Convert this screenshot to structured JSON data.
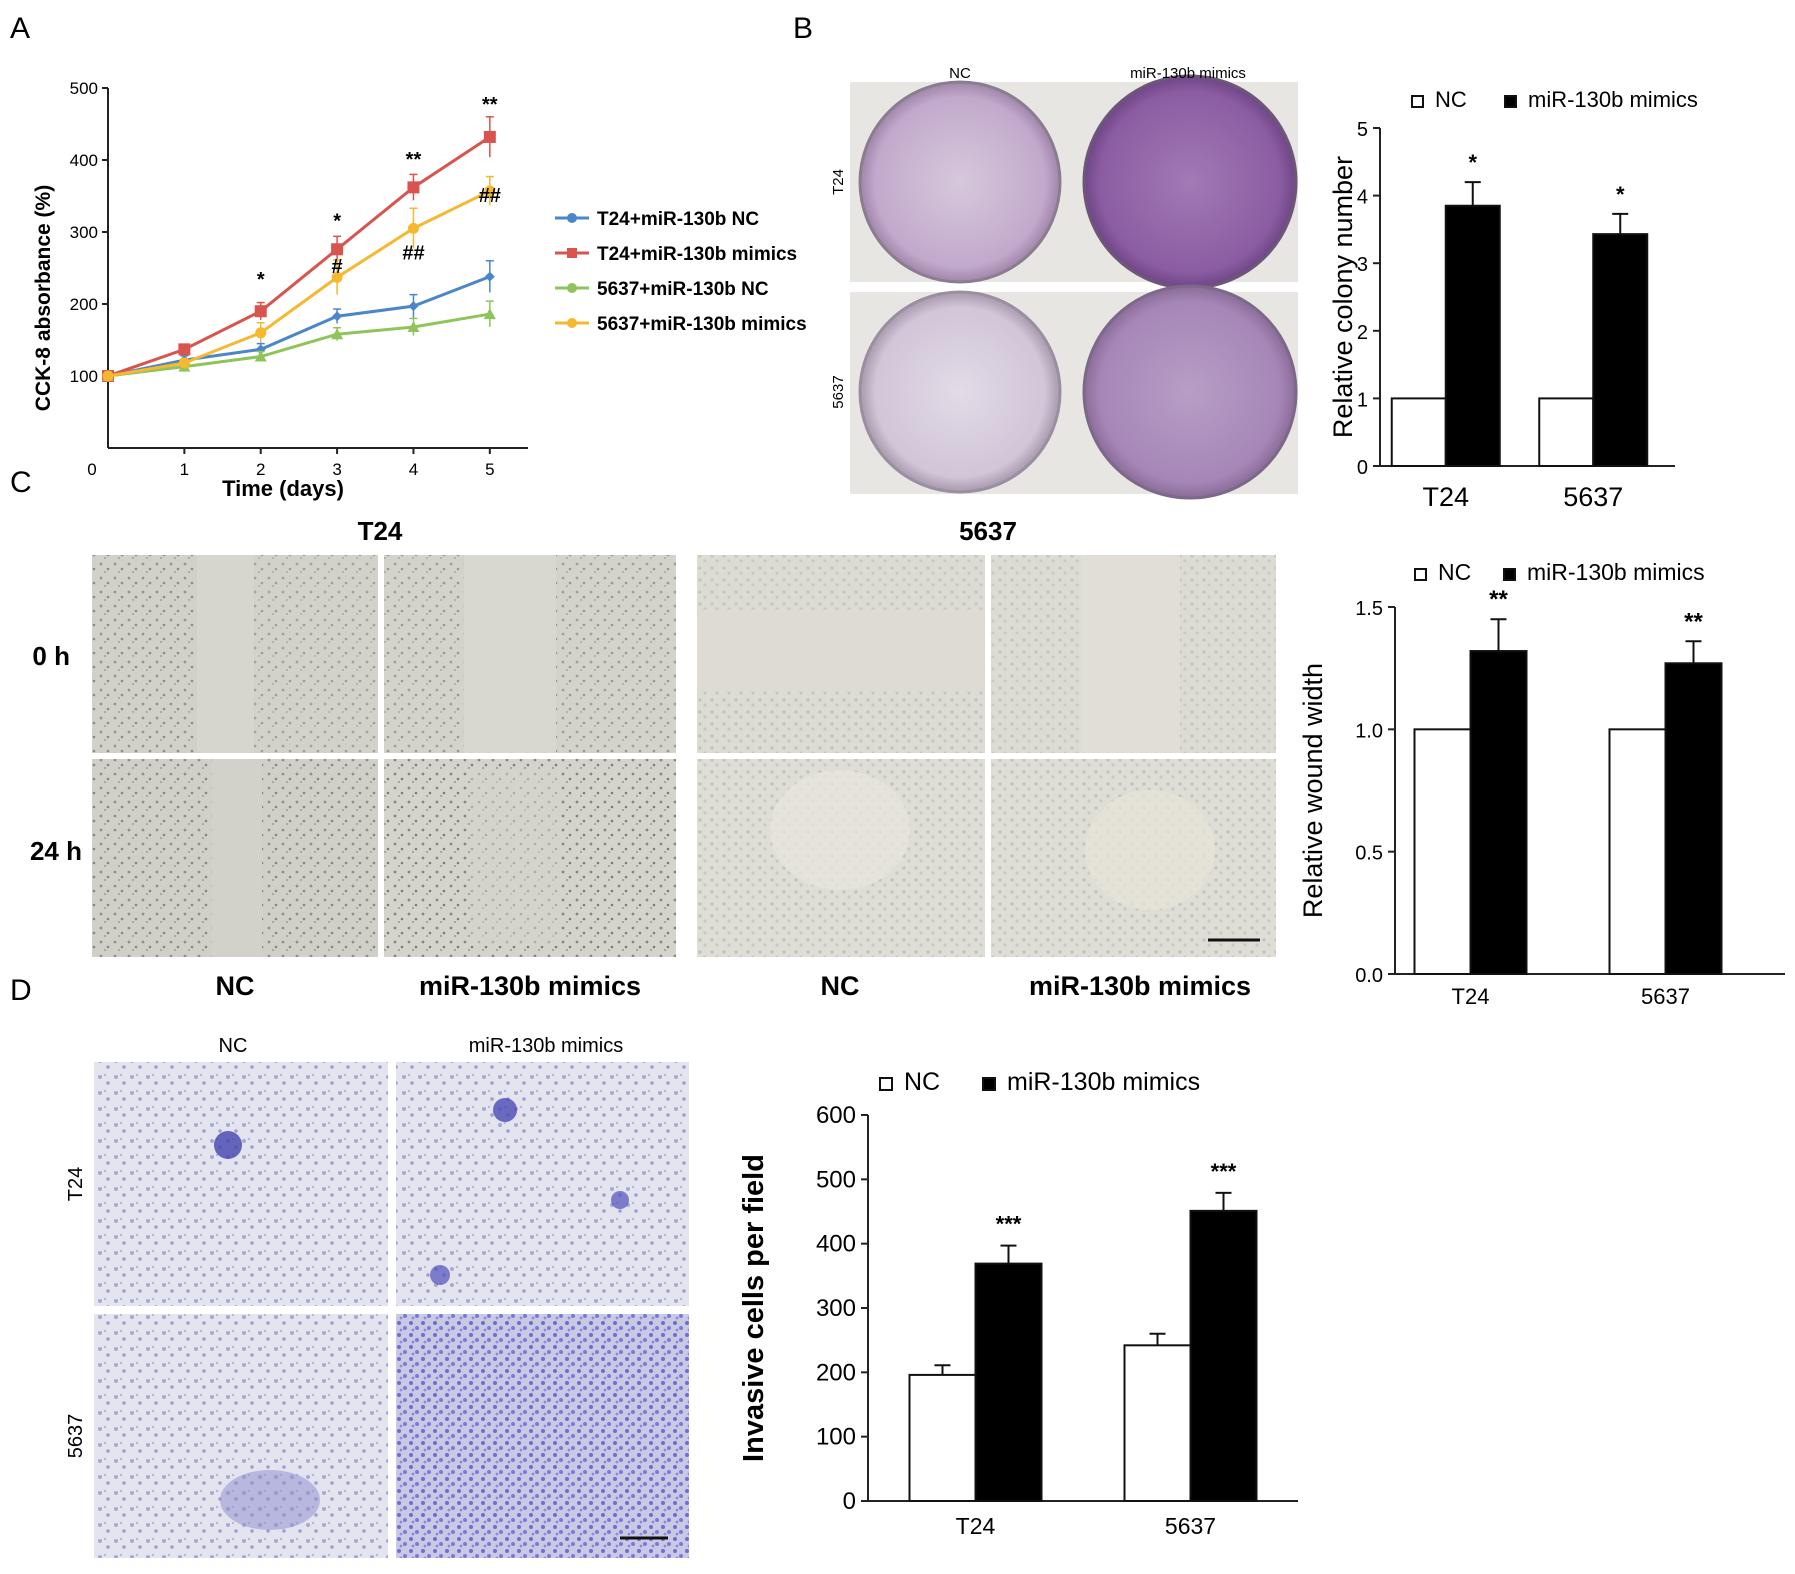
{
  "panels": {
    "a": {
      "letter": "A",
      "chart_data": {
        "type": "line",
        "xlabel": "Time (days)",
        "ylabel": "CCK-8 absorbance (%)",
        "x": [
          0,
          1,
          2,
          3,
          4,
          5
        ],
        "x_ticks": [
          "0",
          "1",
          "2",
          "3",
          "4",
          "5"
        ],
        "y_ticks": [
          "100",
          "200",
          "300",
          "400",
          "500"
        ],
        "ylim": [
          0,
          500
        ],
        "xlim": [
          0,
          5.5
        ],
        "legend_position": "right",
        "series": [
          {
            "name": "T24+miR-130b NC",
            "values": [
              100,
              122,
              137,
              183,
              197,
              238
            ],
            "errors": [
              5,
              6,
              8,
              10,
              16,
              22
            ],
            "color": "#4a86c8",
            "marker": "diamond"
          },
          {
            "name": "T24+miR-130b mimics",
            "values": [
              100,
              137,
              190,
              276,
              362,
              432
            ],
            "errors": [
              5,
              7,
              12,
              18,
              18,
              28
            ],
            "color": "#d9534f",
            "marker": "square"
          },
          {
            "name": "5637+miR-130b NC",
            "values": [
              100,
              113,
              127,
              158,
              168,
              186
            ],
            "errors": [
              5,
              5,
              7,
              9,
              12,
              18
            ],
            "color": "#8fc45a",
            "marker": "triangle"
          },
          {
            "name": "5637+miR-130b mimics",
            "values": [
              100,
              118,
              160,
              237,
              305,
              357
            ],
            "errors": [
              5,
              6,
              14,
              24,
              28,
              20
            ],
            "color": "#f5b82e",
            "marker": "circle"
          }
        ],
        "annotations": [
          {
            "x": 2,
            "y": 225,
            "text": "*"
          },
          {
            "x": 3,
            "y": 306,
            "text": "*"
          },
          {
            "x": 3,
            "y": 243,
            "text": "#"
          },
          {
            "x": 4,
            "y": 392,
            "text": "**"
          },
          {
            "x": 4,
            "y": 262,
            "text": "##"
          },
          {
            "x": 5,
            "y": 468,
            "text": "**"
          },
          {
            "x": 5,
            "y": 342,
            "text": "##"
          }
        ]
      }
    },
    "b": {
      "letter": "B",
      "photo": {
        "col_labels": [
          "NC",
          "miR-130b mimics"
        ],
        "row_labels": [
          "T24",
          "5637"
        ]
      },
      "chart_data": {
        "type": "bar",
        "ylabel": "Relative colony number",
        "categories": [
          "T24",
          "5637"
        ],
        "y_ticks": [
          "0",
          "1",
          "2",
          "3",
          "4",
          "5"
        ],
        "ylim": [
          0,
          5
        ],
        "legend_position": "top",
        "series": [
          {
            "name": "NC",
            "values": [
              1,
              1
            ],
            "errors": [
              0,
              0
            ],
            "color": "#ffffff"
          },
          {
            "name": "miR-130b mimics",
            "values": [
              3.85,
              3.43
            ],
            "errors": [
              0.35,
              0.3
            ],
            "color": "#000000"
          }
        ],
        "annotations": [
          {
            "category": "T24",
            "text": "*"
          },
          {
            "category": "5637",
            "text": "*"
          }
        ]
      }
    },
    "c": {
      "letter": "C",
      "photo_left": {
        "title": "T24",
        "col_labels": [
          "NC",
          "miR-130b mimics"
        ],
        "row_labels": [
          "0 h",
          "24 h"
        ]
      },
      "photo_right": {
        "title": "5637",
        "col_labels": [
          "NC",
          "miR-130b mimics"
        ]
      },
      "chart_data": {
        "type": "bar",
        "ylabel": "Relative wound width",
        "categories": [
          "T24",
          "5637"
        ],
        "y_ticks": [
          "0.0",
          "0.5",
          "1.0",
          "1.5"
        ],
        "ylim": [
          0,
          1.5
        ],
        "legend_position": "top",
        "series": [
          {
            "name": "NC",
            "values": [
              1.0,
              1.0
            ],
            "errors": [
              0,
              0
            ],
            "color": "#ffffff"
          },
          {
            "name": "miR-130b mimics",
            "values": [
              1.32,
              1.27
            ],
            "errors": [
              0.13,
              0.09
            ],
            "color": "#000000"
          }
        ],
        "annotations": [
          {
            "category": "T24",
            "text": "**"
          },
          {
            "category": "5637",
            "text": "**"
          }
        ]
      }
    },
    "d": {
      "letter": "D",
      "photo": {
        "col_labels": [
          "NC",
          "miR-130b mimics"
        ],
        "row_labels": [
          "T24",
          "5637"
        ]
      },
      "chart_data": {
        "type": "bar",
        "ylabel": "Invasive cells per field",
        "categories": [
          "T24",
          "5637"
        ],
        "y_ticks": [
          "0",
          "100",
          "200",
          "300",
          "400",
          "500",
          "600"
        ],
        "ylim": [
          0,
          600
        ],
        "legend_position": "top",
        "series": [
          {
            "name": "NC",
            "values": [
              196,
              242
            ],
            "errors": [
              15,
              18
            ],
            "color": "#ffffff"
          },
          {
            "name": "miR-130b mimics",
            "values": [
              369,
              451
            ],
            "errors": [
              28,
              28
            ],
            "color": "#000000"
          }
        ],
        "annotations": [
          {
            "category": "T24",
            "text": "***"
          },
          {
            "category": "5637",
            "text": "***"
          }
        ]
      }
    }
  }
}
